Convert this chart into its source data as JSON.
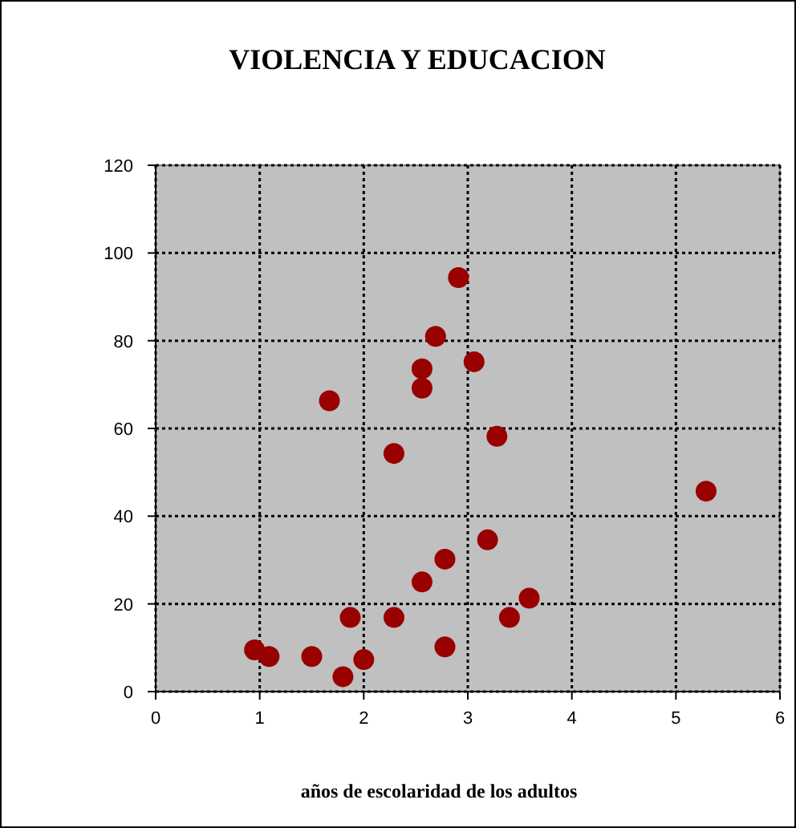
{
  "chart_data": {
    "type": "scatter",
    "title": "VIOLENCIA Y EDUCACION",
    "xlabel": "años de escolaridad de los adultos",
    "x": [
      0.95,
      1.09,
      1.5,
      1.8,
      2.0,
      1.87,
      2.29,
      1.67,
      2.29,
      2.56,
      2.56,
      2.69,
      2.91,
      3.06,
      3.28,
      5.29,
      3.19,
      2.78,
      2.56,
      2.78,
      3.4,
      3.59
    ],
    "series": [
      {
        "color": "#990000",
        "values": [
          9.5,
          8,
          8,
          3.4,
          7.3,
          16.9,
          16.9,
          66.3,
          54.3,
          69.2,
          73.6,
          81,
          94.4,
          75.2,
          58.2,
          45.7,
          34.6,
          30.2,
          25,
          10.2,
          16.9,
          21.3
        ]
      }
    ],
    "xlim": [
      0,
      6
    ],
    "xticks": [
      0,
      1,
      2,
      3,
      4,
      5,
      6
    ],
    "ylim": [
      0,
      120
    ],
    "yticks": [
      0,
      20,
      40,
      60,
      80,
      100,
      120
    ],
    "grid": true,
    "marker": "circle"
  }
}
